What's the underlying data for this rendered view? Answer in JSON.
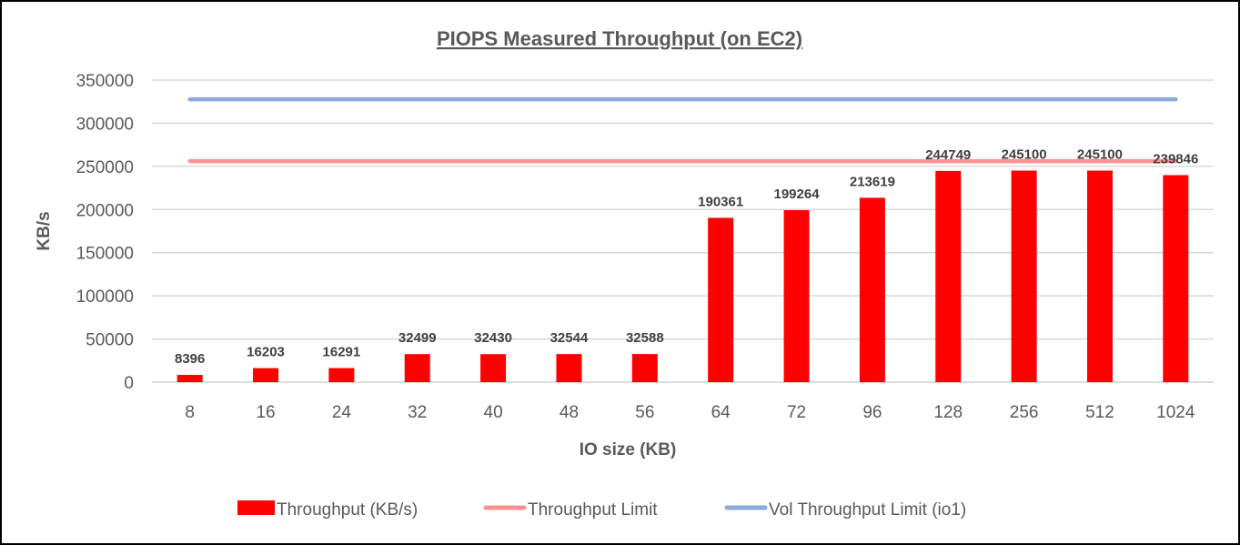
{
  "chart_data": {
    "type": "bar",
    "title": "PIOPS Measured Throughput (on EC2)",
    "xlabel": "IO size (KB)",
    "ylabel": "KB/s",
    "ylim": [
      0,
      350000
    ],
    "yticks": [
      0,
      50000,
      100000,
      150000,
      200000,
      250000,
      300000,
      350000
    ],
    "grid": true,
    "legend_position": "bottom",
    "categories": [
      "8",
      "16",
      "24",
      "32",
      "40",
      "48",
      "56",
      "64",
      "72",
      "96",
      "128",
      "256",
      "512",
      "1024"
    ],
    "series": [
      {
        "name": "Throughput (KB/s)",
        "kind": "bar",
        "color": "#ff0000",
        "values": [
          8396,
          16203,
          16291,
          32499,
          32430,
          32544,
          32588,
          190361,
          199264,
          213619,
          244749,
          245100,
          245100,
          239846
        ]
      },
      {
        "name": "Throughput Limit",
        "kind": "line",
        "color": "#ff9090",
        "values": [
          256000,
          256000,
          256000,
          256000,
          256000,
          256000,
          256000,
          256000,
          256000,
          256000,
          256000,
          256000,
          256000,
          256000
        ]
      },
      {
        "name": "Vol Throughput Limit (io1)",
        "kind": "line",
        "color": "#8eaadb",
        "values": [
          327680,
          327680,
          327680,
          327680,
          327680,
          327680,
          327680,
          327680,
          327680,
          327680,
          327680,
          327680,
          327680,
          327680
        ]
      }
    ]
  }
}
